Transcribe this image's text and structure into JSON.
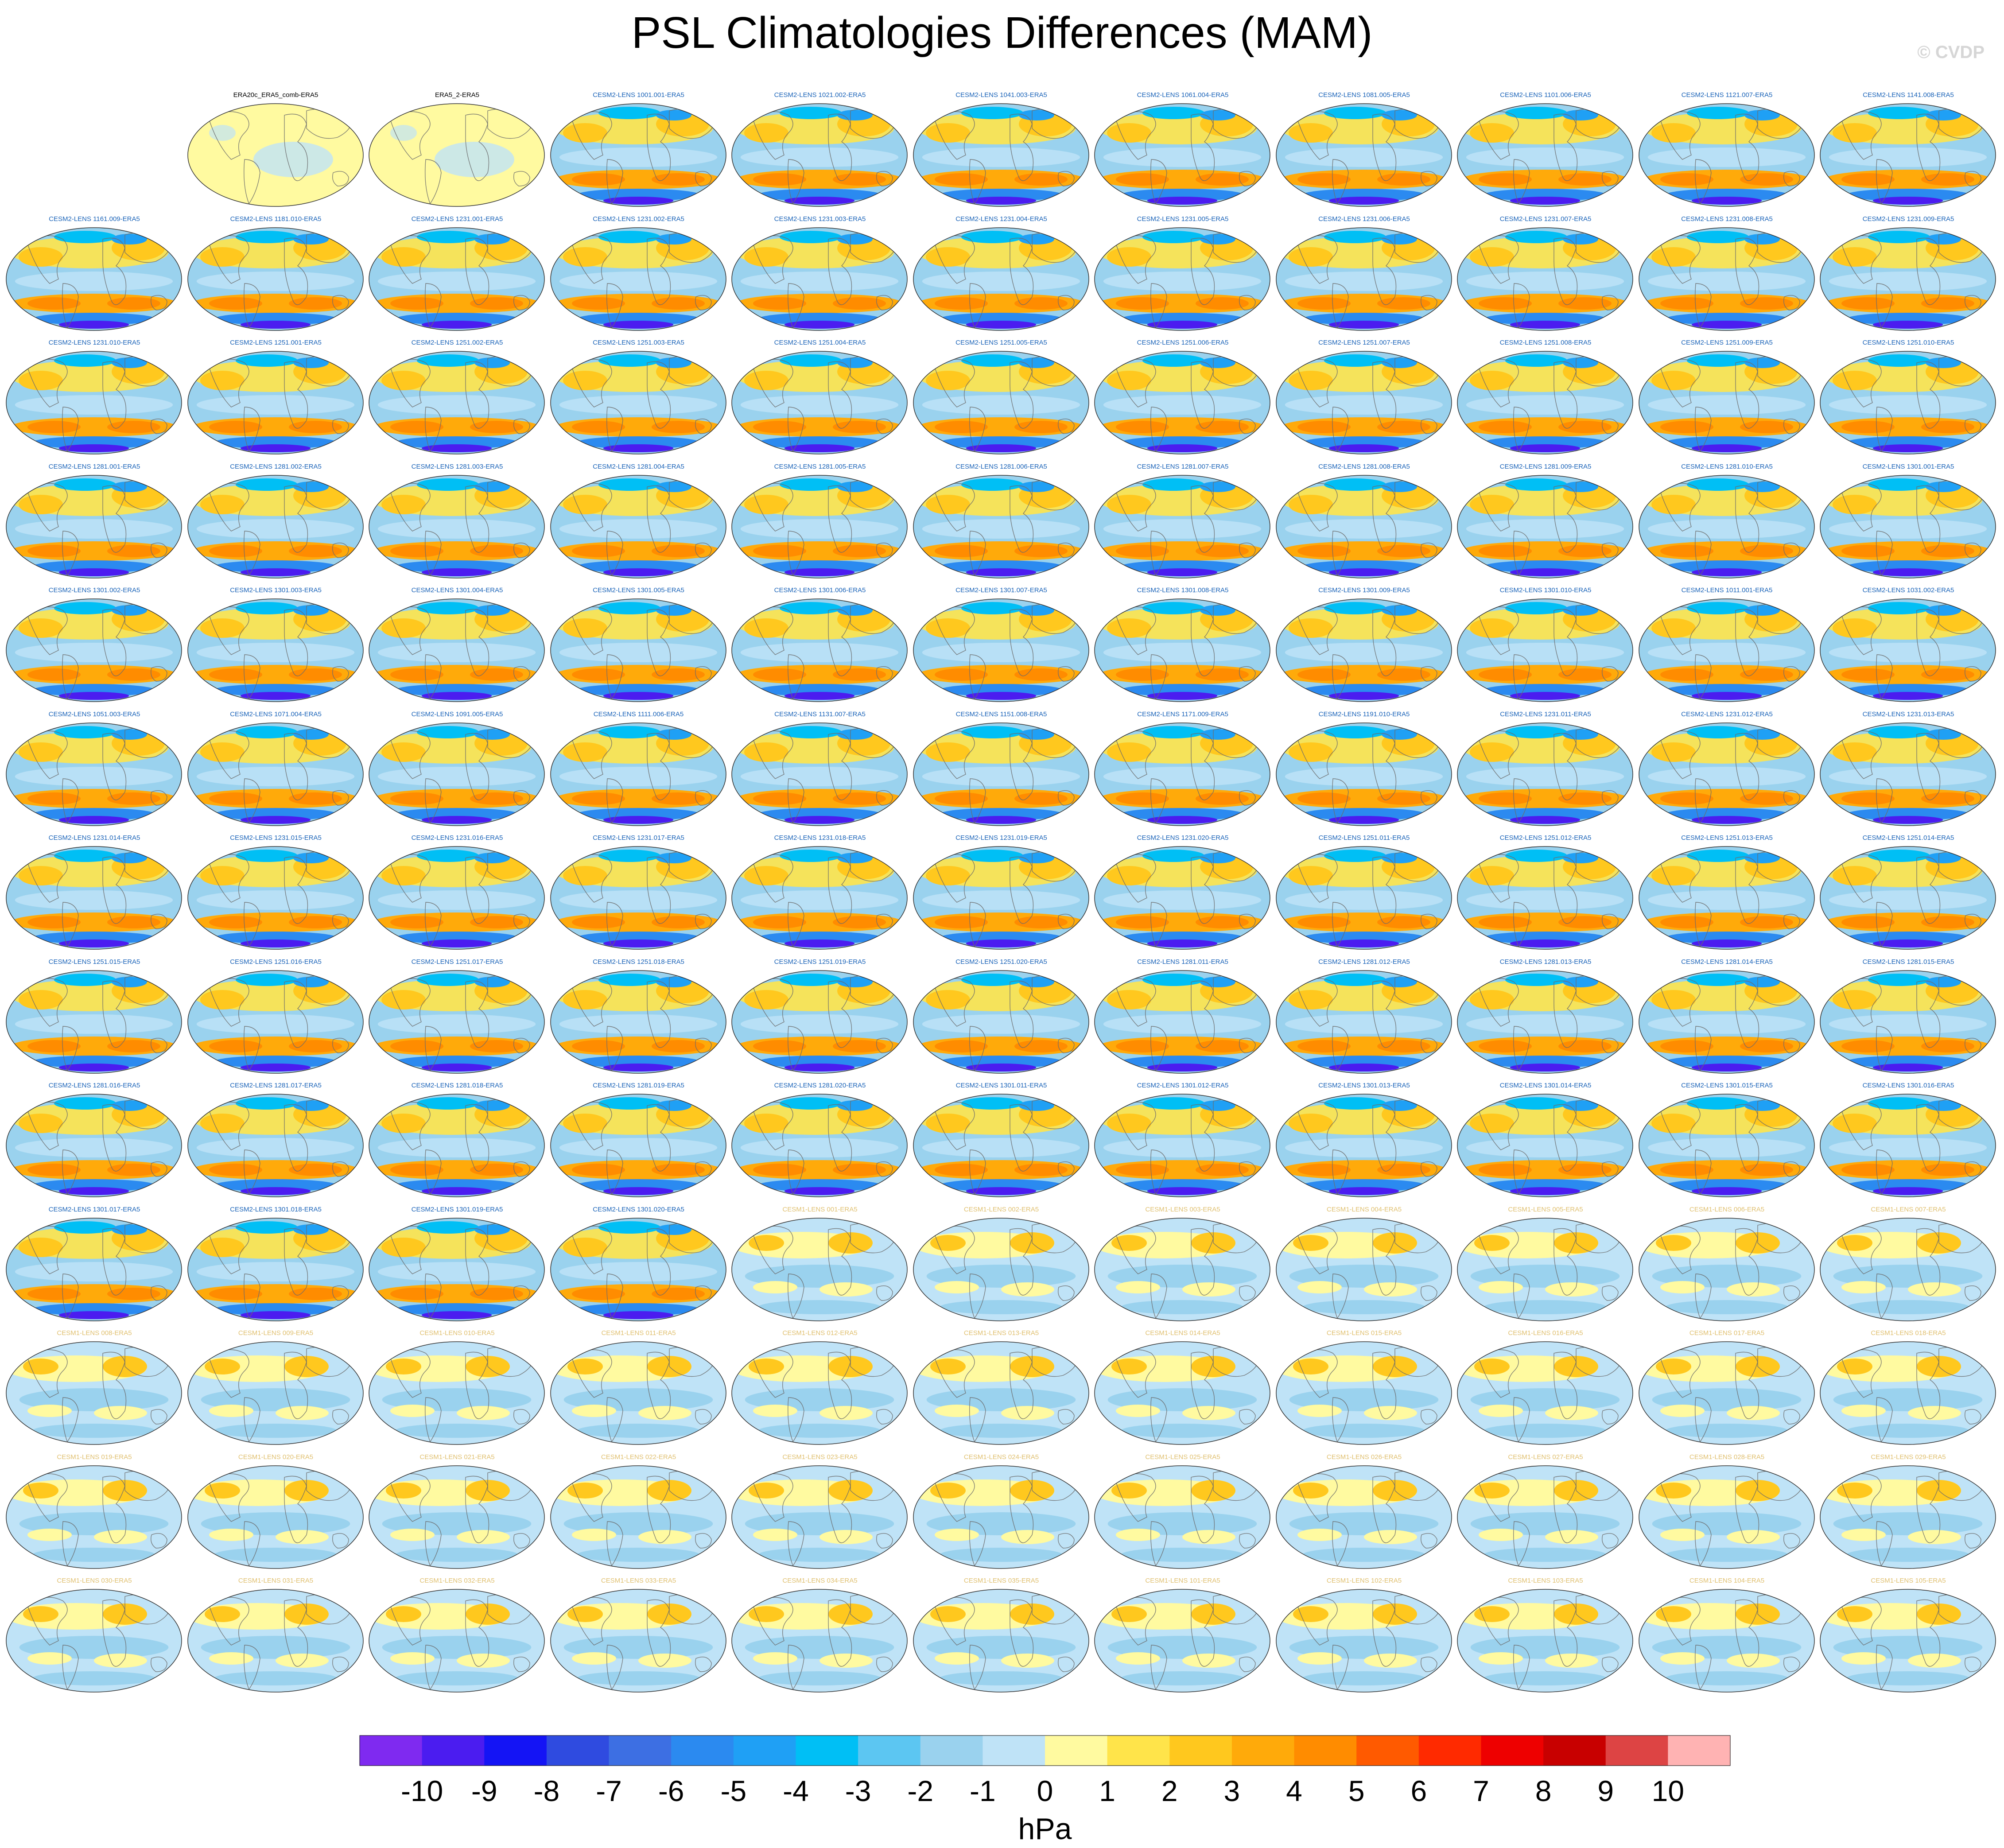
{
  "title": "PSL Climatologies Differences (MAM)",
  "watermark": "© CVDP",
  "chart_data": {
    "type": "heatmap",
    "title": "PSL Climatologies Differences (MAM)",
    "projection": "global map panels",
    "grid_layout": "13 rows x 11 columns, first cell empty",
    "units": "hPa",
    "colorbar": {
      "label": "hPa",
      "tick_labels": [
        "-10",
        "-9",
        "-8",
        "-7",
        "-6",
        "-5",
        "-4",
        "-3",
        "-2",
        "-1",
        "0",
        "1",
        "2",
        "3",
        "4",
        "5",
        "6",
        "7",
        "8",
        "9",
        "10"
      ],
      "colors": [
        "#7f2af0",
        "#4b1cf0",
        "#1414f5",
        "#2f4be0",
        "#3d6fe3",
        "#2b8af0",
        "#1fa0f5",
        "#00bff5",
        "#5cc6f2",
        "#9ad2ee",
        "#bfe3f7",
        "#fffaa0",
        "#ffe44a",
        "#ffc81e",
        "#ffaa0a",
        "#ff8c00",
        "#ff5a00",
        "#ff2a00",
        "#ee0000",
        "#c80000",
        "#dd4444",
        "#ffb3b3"
      ]
    },
    "panel_title_colors": {
      "ERA": "#000000",
      "CESM2-LENS": "#1a63b8",
      "CESM1-LENS": "#e0c070"
    },
    "panels": [
      "ERA20c_ERA5_comb-ERA5",
      "ERA5_2-ERA5",
      "CESM2-LENS 1001.001-ERA5",
      "CESM2-LENS 1021.002-ERA5",
      "CESM2-LENS 1041.003-ERA5",
      "CESM2-LENS 1061.004-ERA5",
      "CESM2-LENS 1081.005-ERA5",
      "CESM2-LENS 1101.006-ERA5",
      "CESM2-LENS 1121.007-ERA5",
      "CESM2-LENS 1141.008-ERA5",
      "CESM2-LENS 1161.009-ERA5",
      "CESM2-LENS 1181.010-ERA5",
      "CESM2-LENS 1231.001-ERA5",
      "CESM2-LENS 1231.002-ERA5",
      "CESM2-LENS 1231.003-ERA5",
      "CESM2-LENS 1231.004-ERA5",
      "CESM2-LENS 1231.005-ERA5",
      "CESM2-LENS 1231.006-ERA5",
      "CESM2-LENS 1231.007-ERA5",
      "CESM2-LENS 1231.008-ERA5",
      "CESM2-LENS 1231.009-ERA5",
      "CESM2-LENS 1231.010-ERA5",
      "CESM2-LENS 1251.001-ERA5",
      "CESM2-LENS 1251.002-ERA5",
      "CESM2-LENS 1251.003-ERA5",
      "CESM2-LENS 1251.004-ERA5",
      "CESM2-LENS 1251.005-ERA5",
      "CESM2-LENS 1251.006-ERA5",
      "CESM2-LENS 1251.007-ERA5",
      "CESM2-LENS 1251.008-ERA5",
      "CESM2-LENS 1251.009-ERA5",
      "CESM2-LENS 1251.010-ERA5",
      "CESM2-LENS 1281.001-ERA5",
      "CESM2-LENS 1281.002-ERA5",
      "CESM2-LENS 1281.003-ERA5",
      "CESM2-LENS 1281.004-ERA5",
      "CESM2-LENS 1281.005-ERA5",
      "CESM2-LENS 1281.006-ERA5",
      "CESM2-LENS 1281.007-ERA5",
      "CESM2-LENS 1281.008-ERA5",
      "CESM2-LENS 1281.009-ERA5",
      "CESM2-LENS 1281.010-ERA5",
      "CESM2-LENS 1301.001-ERA5",
      "CESM2-LENS 1301.002-ERA5",
      "CESM2-LENS 1301.003-ERA5",
      "CESM2-LENS 1301.004-ERA5",
      "CESM2-LENS 1301.005-ERA5",
      "CESM2-LENS 1301.006-ERA5",
      "CESM2-LENS 1301.007-ERA5",
      "CESM2-LENS 1301.008-ERA5",
      "CESM2-LENS 1301.009-ERA5",
      "CESM2-LENS 1301.010-ERA5",
      "CESM2-LENS 1011.001-ERA5",
      "CESM2-LENS 1031.002-ERA5",
      "CESM2-LENS 1051.003-ERA5",
      "CESM2-LENS 1071.004-ERA5",
      "CESM2-LENS 1091.005-ERA5",
      "CESM2-LENS 1111.006-ERA5",
      "CESM2-LENS 1131.007-ERA5",
      "CESM2-LENS 1151.008-ERA5",
      "CESM2-LENS 1171.009-ERA5",
      "CESM2-LENS 1191.010-ERA5",
      "CESM2-LENS 1231.011-ERA5",
      "CESM2-LENS 1231.012-ERA5",
      "CESM2-LENS 1231.013-ERA5",
      "CESM2-LENS 1231.014-ERA5",
      "CESM2-LENS 1231.015-ERA5",
      "CESM2-LENS 1231.016-ERA5",
      "CESM2-LENS 1231.017-ERA5",
      "CESM2-LENS 1231.018-ERA5",
      "CESM2-LENS 1231.019-ERA5",
      "CESM2-LENS 1231.020-ERA5",
      "CESM2-LENS 1251.011-ERA5",
      "CESM2-LENS 1251.012-ERA5",
      "CESM2-LENS 1251.013-ERA5",
      "CESM2-LENS 1251.014-ERA5",
      "CESM2-LENS 1251.015-ERA5",
      "CESM2-LENS 1251.016-ERA5",
      "CESM2-LENS 1251.017-ERA5",
      "CESM2-LENS 1251.018-ERA5",
      "CESM2-LENS 1251.019-ERA5",
      "CESM2-LENS 1251.020-ERA5",
      "CESM2-LENS 1281.011-ERA5",
      "CESM2-LENS 1281.012-ERA5",
      "CESM2-LENS 1281.013-ERA5",
      "CESM2-LENS 1281.014-ERA5",
      "CESM2-LENS 1281.015-ERA5",
      "CESM2-LENS 1281.016-ERA5",
      "CESM2-LENS 1281.017-ERA5",
      "CESM2-LENS 1281.018-ERA5",
      "CESM2-LENS 1281.019-ERA5",
      "CESM2-LENS 1281.020-ERA5",
      "CESM2-LENS 1301.011-ERA5",
      "CESM2-LENS 1301.012-ERA5",
      "CESM2-LENS 1301.013-ERA5",
      "CESM2-LENS 1301.014-ERA5",
      "CESM2-LENS 1301.015-ERA5",
      "CESM2-LENS 1301.016-ERA5",
      "CESM2-LENS 1301.017-ERA5",
      "CESM2-LENS 1301.018-ERA5",
      "CESM2-LENS 1301.019-ERA5",
      "CESM2-LENS 1301.020-ERA5",
      "CESM1-LENS 001-ERA5",
      "CESM1-LENS 002-ERA5",
      "CESM1-LENS 003-ERA5",
      "CESM1-LENS 004-ERA5",
      "CESM1-LENS 005-ERA5",
      "CESM1-LENS 006-ERA5",
      "CESM1-LENS 007-ERA5",
      "CESM1-LENS 008-ERA5",
      "CESM1-LENS 009-ERA5",
      "CESM1-LENS 010-ERA5",
      "CESM1-LENS 011-ERA5",
      "CESM1-LENS 012-ERA5",
      "CESM1-LENS 013-ERA5",
      "CESM1-LENS 014-ERA5",
      "CESM1-LENS 015-ERA5",
      "CESM1-LENS 016-ERA5",
      "CESM1-LENS 017-ERA5",
      "CESM1-LENS 018-ERA5",
      "CESM1-LENS 019-ERA5",
      "CESM1-LENS 020-ERA5",
      "CESM1-LENS 021-ERA5",
      "CESM1-LENS 022-ERA5",
      "CESM1-LENS 023-ERA5",
      "CESM1-LENS 024-ERA5",
      "CESM1-LENS 025-ERA5",
      "CESM1-LENS 026-ERA5",
      "CESM1-LENS 027-ERA5",
      "CESM1-LENS 028-ERA5",
      "CESM1-LENS 029-ERA5",
      "CESM1-LENS 030-ERA5",
      "CESM1-LENS 031-ERA5",
      "CESM1-LENS 032-ERA5",
      "CESM1-LENS 033-ERA5",
      "CESM1-LENS 034-ERA5",
      "CESM1-LENS 035-ERA5",
      "CESM1-LENS 101-ERA5",
      "CESM1-LENS 102-ERA5",
      "CESM1-LENS 103-ERA5",
      "CESM1-LENS 104-ERA5",
      "CESM1-LENS 105-ERA5"
    ]
  }
}
